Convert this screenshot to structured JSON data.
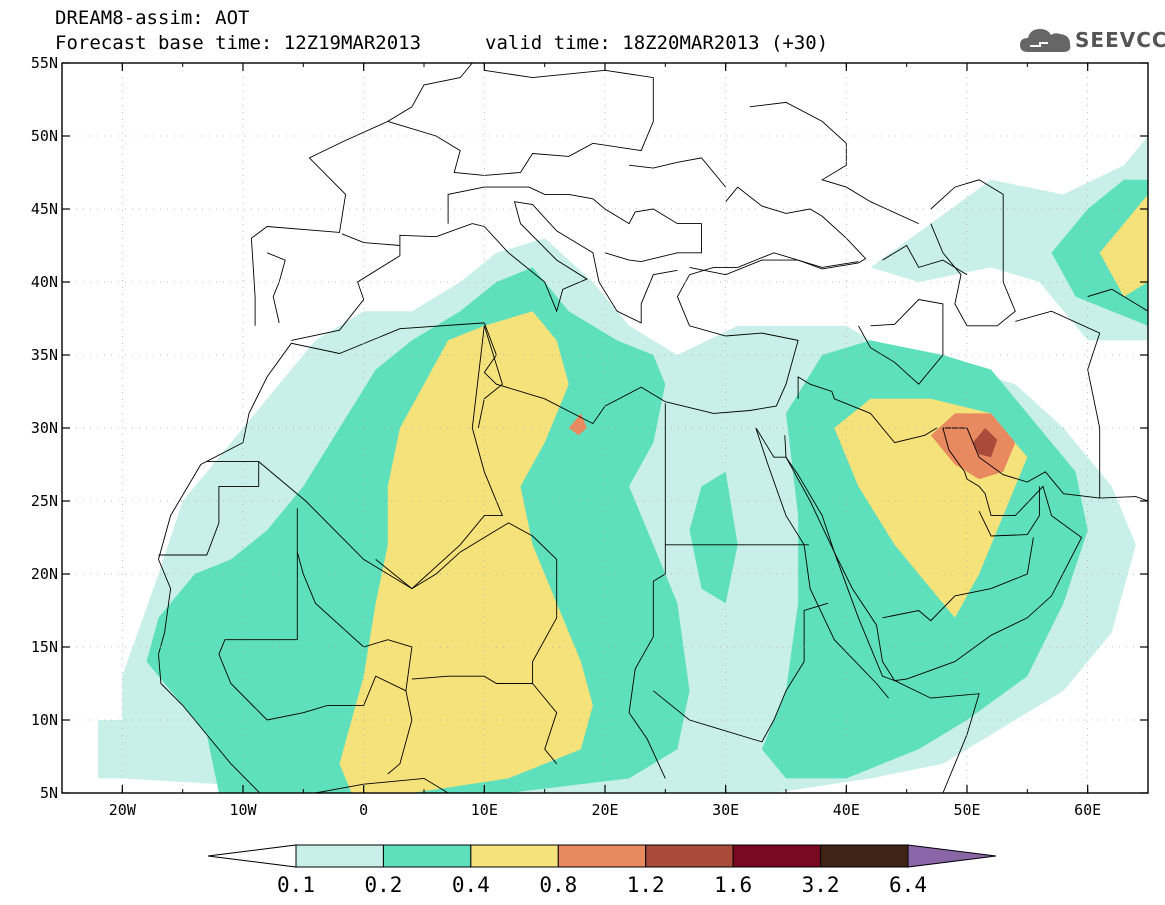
{
  "header": {
    "title": "DREAM8-assim: AOT",
    "base_time": "Forecast base time: 12Z19MAR2013",
    "valid_time": "valid time: 18Z20MAR2013 (+30)"
  },
  "logo": {
    "text": "SEEVCCC",
    "icon": "cloud-icon"
  },
  "map": {
    "lon_range": [
      -25,
      65
    ],
    "lat_range": [
      5,
      55
    ],
    "x_ticks": [
      {
        "lon": -20,
        "label": "20W"
      },
      {
        "lon": -10,
        "label": "10W"
      },
      {
        "lon": 0,
        "label": "0"
      },
      {
        "lon": 10,
        "label": "10E"
      },
      {
        "lon": 20,
        "label": "20E"
      },
      {
        "lon": 30,
        "label": "30E"
      },
      {
        "lon": 40,
        "label": "40E"
      },
      {
        "lon": 50,
        "label": "50E"
      },
      {
        "lon": 60,
        "label": "60E"
      }
    ],
    "y_ticks": [
      {
        "lat": 5,
        "label": "5N"
      },
      {
        "lat": 10,
        "label": "10N"
      },
      {
        "lat": 15,
        "label": "15N"
      },
      {
        "lat": 20,
        "label": "20N"
      },
      {
        "lat": 25,
        "label": "25N"
      },
      {
        "lat": 30,
        "label": "30N"
      },
      {
        "lat": 35,
        "label": "35N"
      },
      {
        "lat": 40,
        "label": "40N"
      },
      {
        "lat": 45,
        "label": "45N"
      },
      {
        "lat": 50,
        "label": "50N"
      },
      {
        "lat": 55,
        "label": "55N"
      }
    ],
    "grid": true
  },
  "legend": {
    "labels": [
      "0.1",
      "0.2",
      "0.4",
      "0.8",
      "1.2",
      "1.6",
      "3.2",
      "6.4"
    ],
    "colors": [
      "#ffffff",
      "#c8f0e8",
      "#5ee0bc",
      "#f5e27a",
      "#e8895f",
      "#a84b3a",
      "#7a0a22",
      "#3e2415",
      "#8a66a8"
    ]
  }
}
